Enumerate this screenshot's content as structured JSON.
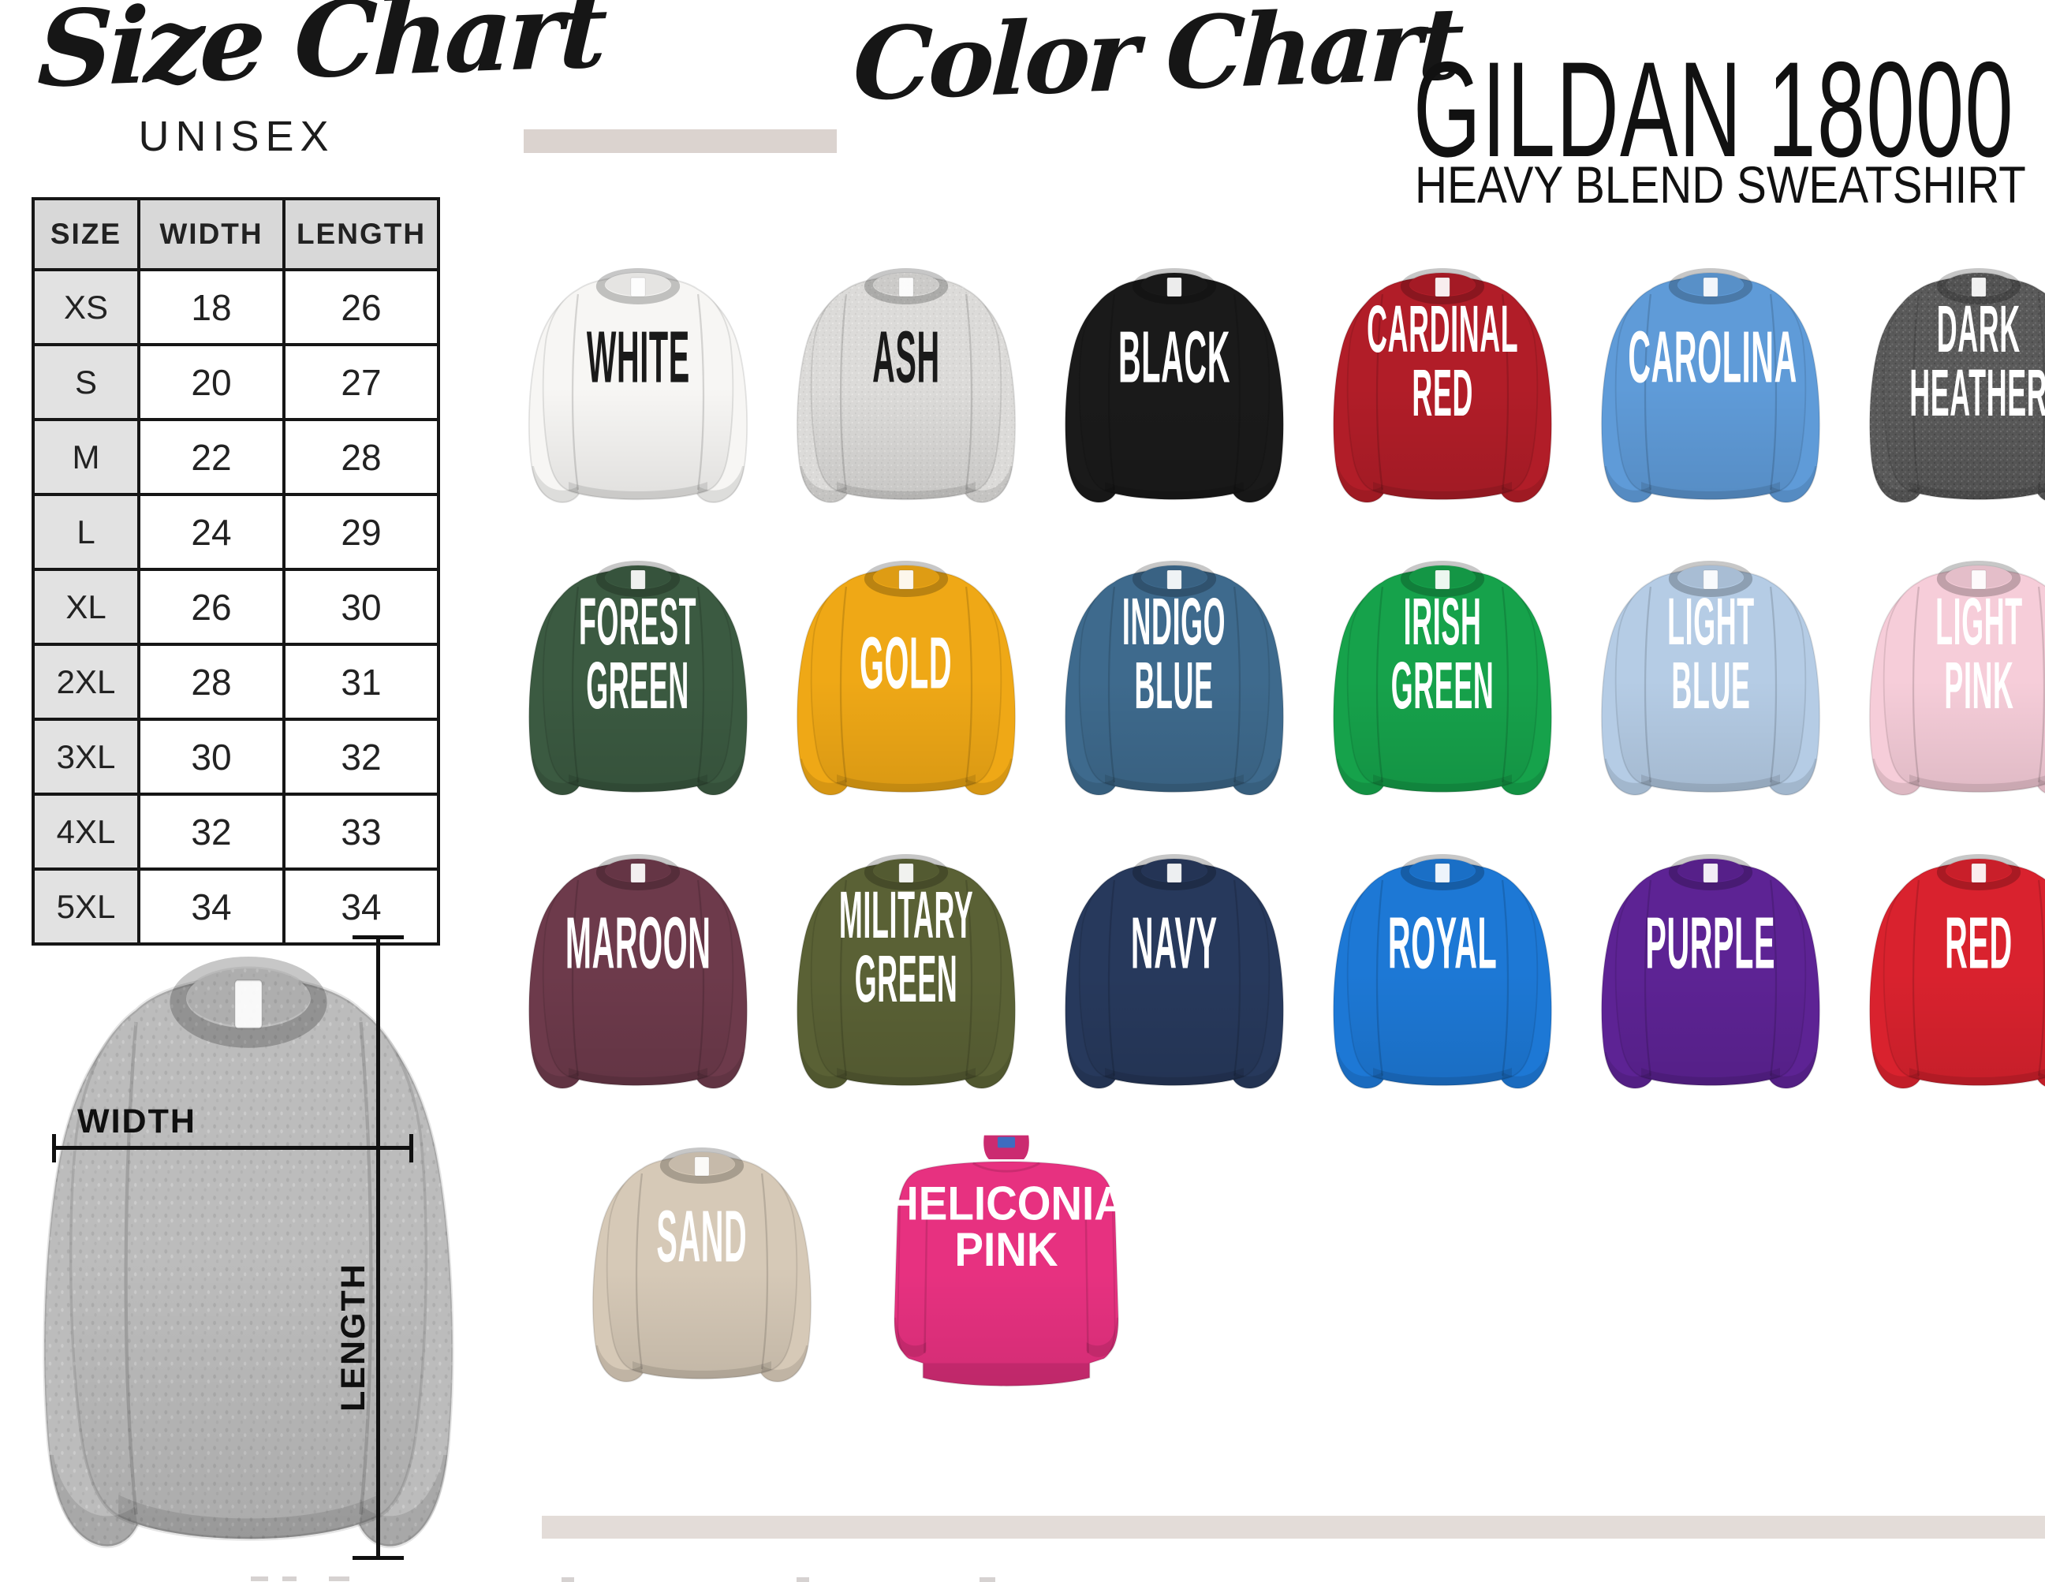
{
  "size_chart": {
    "title": "Size Chart",
    "subtitle": "UNISEX",
    "table": {
      "headers": [
        "SIZE",
        "WIDTH",
        "LENGTH"
      ],
      "rows": [
        [
          "XS",
          "18",
          "26"
        ],
        [
          "S",
          "20",
          "27"
        ],
        [
          "M",
          "22",
          "28"
        ],
        [
          "L",
          "24",
          "29"
        ],
        [
          "XL",
          "26",
          "30"
        ],
        [
          "2XL",
          "28",
          "31"
        ],
        [
          "3XL",
          "30",
          "32"
        ],
        [
          "4XL",
          "32",
          "33"
        ],
        [
          "5XL",
          "34",
          "34"
        ]
      ]
    },
    "diagram": {
      "width_label": "WIDTH",
      "length_label": "LENGTH",
      "garment_color": "#bcbcbc"
    }
  },
  "color_chart": {
    "title": "Color Chart",
    "product_name": "GILDAN 18000",
    "product_subtitle": "HEAVY BLEND SWEATSHIRT",
    "colors": [
      {
        "name": "WHITE",
        "lines": [
          "WHITE"
        ],
        "hex": "#f7f6f4",
        "label_color": "#1a1a1a"
      },
      {
        "name": "ASH",
        "lines": [
          "ASH"
        ],
        "hex": "#dcdbd9",
        "label_color": "#1a1a1a",
        "heather": true
      },
      {
        "name": "BLACK",
        "lines": [
          "BLACK"
        ],
        "hex": "#1a1a1a",
        "label_color": "#ffffff"
      },
      {
        "name": "CARDINAL RED",
        "lines": [
          "CARDINAL",
          "RED"
        ],
        "hex": "#b11d28",
        "label_color": "#ffffff"
      },
      {
        "name": "CAROLINA",
        "lines": [
          "CAROLINA"
        ],
        "hex": "#5f9bd8",
        "label_color": "#ffffff"
      },
      {
        "name": "DARK HEATHER",
        "lines": [
          "DARK",
          "HEATHER"
        ],
        "hex": "#5a5a5a",
        "label_color": "#ffffff",
        "heather": true
      },
      {
        "name": "FOREST GREEN",
        "lines": [
          "FOREST",
          "GREEN"
        ],
        "hex": "#3b5a41",
        "label_color": "#ffffff"
      },
      {
        "name": "GOLD",
        "lines": [
          "GOLD"
        ],
        "hex": "#efa816",
        "label_color": "#ffffff"
      },
      {
        "name": "INDIGO BLUE",
        "lines": [
          "INDIGO",
          "BLUE"
        ],
        "hex": "#3e6a8d",
        "label_color": "#ffffff"
      },
      {
        "name": "IRISH GREEN",
        "lines": [
          "IRISH",
          "GREEN"
        ],
        "hex": "#16a24b",
        "label_color": "#ffffff"
      },
      {
        "name": "LIGHT BLUE",
        "lines": [
          "LIGHT",
          "BLUE"
        ],
        "hex": "#b5cce5",
        "label_color": "#ffffff"
      },
      {
        "name": "LIGHT PINK",
        "lines": [
          "LIGHT",
          "PINK"
        ],
        "hex": "#f6cdd9",
        "label_color": "#ffffff"
      },
      {
        "name": "MAROON",
        "lines": [
          "MAROON"
        ],
        "hex": "#6d3a4b",
        "label_color": "#ffffff"
      },
      {
        "name": "MILITARY GREEN",
        "lines": [
          "MILITARY",
          "GREEN"
        ],
        "hex": "#5a6135",
        "label_color": "#ffffff"
      },
      {
        "name": "NAVY",
        "lines": [
          "NAVY"
        ],
        "hex": "#27395c",
        "label_color": "#ffffff"
      },
      {
        "name": "ROYAL",
        "lines": [
          "ROYAL"
        ],
        "hex": "#1d78d5",
        "label_color": "#ffffff"
      },
      {
        "name": "PURPLE",
        "lines": [
          "PURPLE"
        ],
        "hex": "#5d2394",
        "label_color": "#ffffff"
      },
      {
        "name": "RED",
        "lines": [
          "RED"
        ],
        "hex": "#d9222e",
        "label_color": "#ffffff"
      },
      {
        "name": "SAND",
        "lines": [
          "SAND"
        ],
        "hex": "#d6c9b7",
        "label_color": "#ffffff"
      },
      {
        "name": "HELICONIA PINK",
        "lines": [
          "HELICONIA",
          "PINK"
        ],
        "hex": "#e73180",
        "label_color": "#ffffff"
      }
    ]
  },
  "decor": {
    "bar_color": "#dbd3cf"
  }
}
